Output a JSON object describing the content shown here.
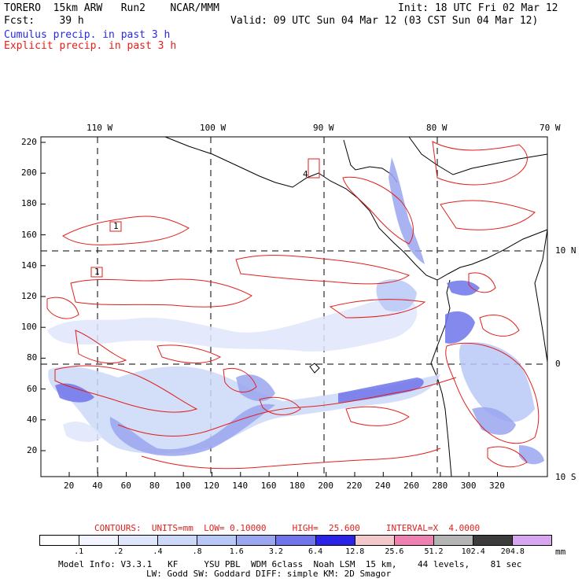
{
  "header": {
    "line1_left": "TORERO  15km ARW   Run2    NCAR/MMM",
    "line1_right": "Init: 18 UTC Fri 02 Mar 12",
    "line2_left": "Fcst:    39 h",
    "line2_right": "Valid: 09 UTC Sun 04 Mar 12 (03 CST Sun 04 Mar 12)",
    "line3": "Cumulus precip. in past 3 h",
    "line4": "Explicit precip. in past 3 h"
  },
  "map": {
    "top_lon_labels": [
      "110 W",
      "100 W",
      "90 W",
      "80 W",
      "70 W"
    ],
    "right_lat_labels": [
      "10 N",
      "0",
      "10 S"
    ],
    "y_axis_ticks": [
      "220",
      "200",
      "180",
      "160",
      "140",
      "120",
      "100",
      "80",
      "60",
      "40",
      "20"
    ],
    "x_axis_ticks": [
      "20",
      "40",
      "60",
      "80",
      "100",
      "120",
      "140",
      "160",
      "180",
      "200",
      "220",
      "240",
      "260",
      "280",
      "300",
      "320"
    ],
    "box_labels": [
      "1",
      "1",
      "4"
    ]
  },
  "contour_info": {
    "label": "CONTOURS:  UNITS=mm  LOW= 0.10000     HIGH=  25.600     INTERVAL=X  4.0000"
  },
  "legend": {
    "unit": "mm",
    "labels": [
      ".1",
      ".2",
      ".4",
      ".8",
      "1.6",
      "3.2",
      "6.4",
      "12.8",
      "25.6",
      "51.2",
      "102.4",
      "204.8"
    ],
    "colors": [
      "#ffffff",
      "#f2f4ff",
      "#dfe6fb",
      "#cbd8f8",
      "#b8c8f6",
      "#9aa6f0",
      "#6f74ea",
      "#2a22e6",
      "#f2c8ca",
      "#f080b0",
      "#b4b4b4",
      "#3c3c3c",
      "#d8a6f0"
    ]
  },
  "footer": {
    "line1": "Model Info: V3.3.1   KF     YSU PBL  WDM 6class  Noah LSM  15 km,    44 levels,    81 sec",
    "line2": "LW: Godd SW: Goddard DIFF: simple KM: 2D Smagor"
  }
}
